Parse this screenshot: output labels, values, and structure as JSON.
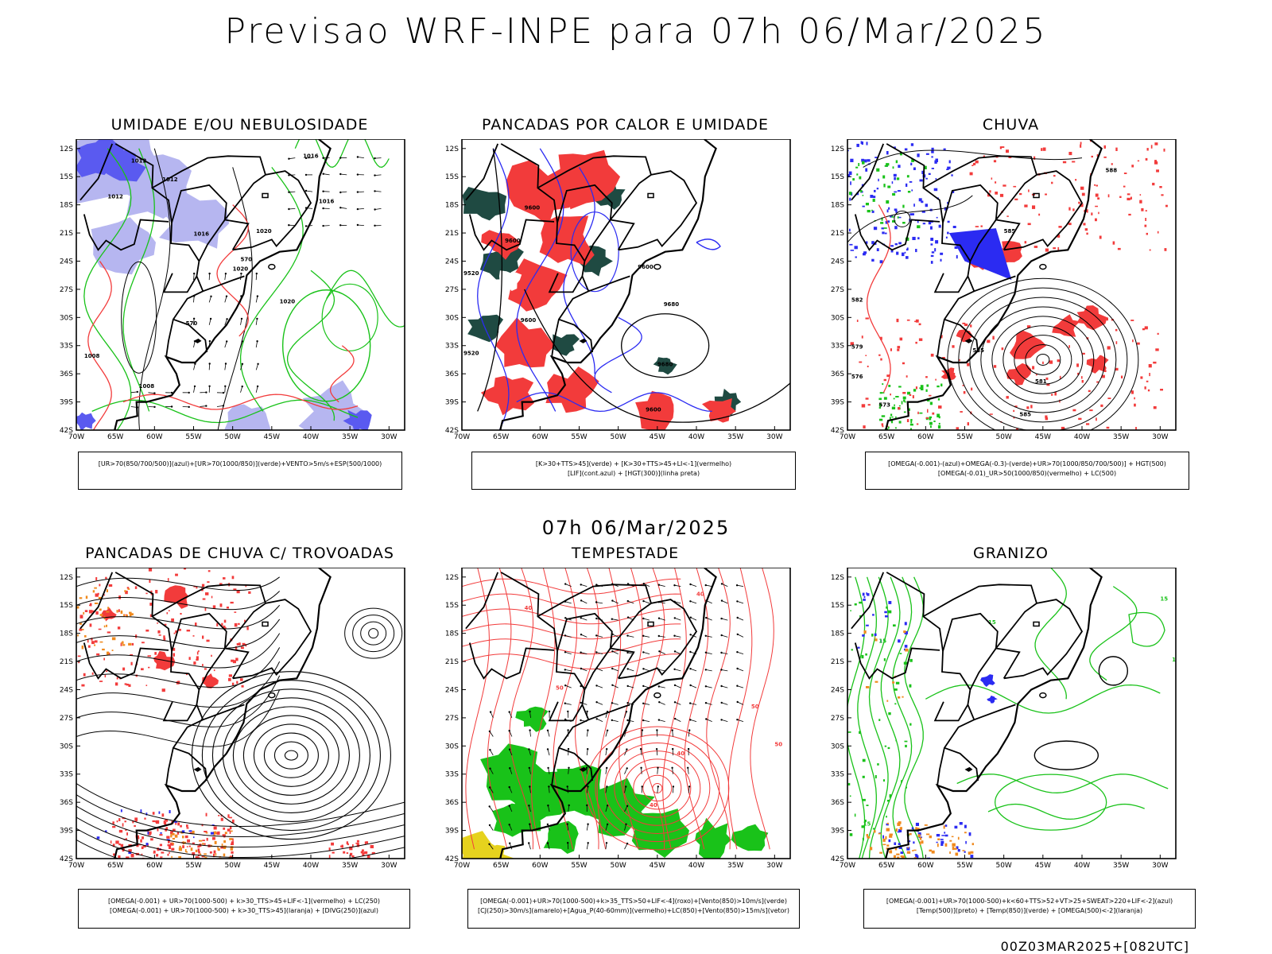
{
  "header": {
    "title": "Previsao WRF-INPE  para 07h 06/Mar/2025"
  },
  "subtitle": "07h 06/Mar/2025",
  "footer": "00Z03MAR2025+[082UTC]",
  "axes": {
    "lat_labels": [
      "12S",
      "15S",
      "18S",
      "21S",
      "24S",
      "27S",
      "30S",
      "33S",
      "36S",
      "39S",
      "42S"
    ],
    "lon_labels": [
      "70W",
      "65W",
      "60W",
      "55W",
      "50W",
      "45W",
      "40W",
      "35W",
      "30W"
    ]
  },
  "colors": {
    "red": "#f23b3b",
    "green": "#19c219",
    "blue": "#2b2bf2",
    "lavender": "#b6b6f0",
    "darkteal": "#1f4a42",
    "orange": "#f08a1e",
    "yellow": "#e6d21e"
  },
  "panels": [
    {
      "title": "UMIDADE E/OU NEBULOSIDADE",
      "legend": [
        "[UR>70(850/700/500)](azul)+[UR>70(1000/850)](verde)+VENTO>5m/s+ESP(500/1000)"
      ],
      "contour_labels": [
        "1016",
        "1012",
        "1012",
        "1016",
        "1012",
        "1016",
        "1020",
        "1020",
        "1020",
        "1008",
        "1008",
        "570",
        "570"
      ]
    },
    {
      "title": "PANCADAS POR CALOR E UMIDADE",
      "legend": [
        "[K>30+TTS>45](verde) + [K>30+TTS>45+LI<-1](vermelho)",
        "[LIF](cont.azul) + [HGT(300)](linha preta)"
      ],
      "contour_labels": [
        "9600",
        "9600",
        "9600",
        "9520",
        "9520",
        "9600",
        "9680",
        "9680",
        "9600"
      ]
    },
    {
      "title": "CHUVA",
      "legend": [
        "[OMEGA(-0.001)-(azul)+OMEGA(-0.3)-(verde)+UR>70(1000/850/700/500)] + HGT(500)",
        "[OMEGA(-0.01)_UR>50(1000/850)(vermelho) + LC(500)"
      ],
      "contour_labels": [
        "588",
        "585",
        "582",
        "579",
        "576",
        "573",
        "585",
        "581",
        "585"
      ]
    },
    {
      "title": "PANCADAS DE CHUVA C/ TROVOADAS",
      "legend": [
        "[OMEGA(-0.001) + UR>70(1000-500) + k>30_TTS>45+LIF<-1](vermelho) + LC(250)",
        "[OMEGA(-0.001) + UR>70(1000-500) + k>30_TTS>45](laranja) + [DIVG(250)](azul)"
      ],
      "contour_labels": []
    },
    {
      "title": "TEMPESTADE",
      "legend": [
        "[OMEGA(-0.001)+UR>70(1000-500)+k>35_TTS>50+LIF<-4](roxo)+[Vento(850)>10m/s](verde)",
        "[CJ(250)>30m/s](amarelo)+[Agua_P(40-60mm)](vermelho)+LC(850)+[Vento(850)>15m/s](vetor)"
      ],
      "contour_labels": [
        "40",
        "50",
        "40",
        "50",
        "40",
        "50",
        "40"
      ]
    },
    {
      "title": "GRANIZO",
      "legend": [
        "[OMEGA(-0.001)+UR>70(1000-500)+k<60+TTS>52+VT>25+SWEAT>220+LIF<-2](azul)",
        "[Temp(500)](preto) + [Temp(850)](verde) + [OMEGA(500)<-2](laranja)"
      ],
      "contour_labels": [
        "15",
        "15",
        "15",
        "10",
        "15"
      ]
    }
  ]
}
